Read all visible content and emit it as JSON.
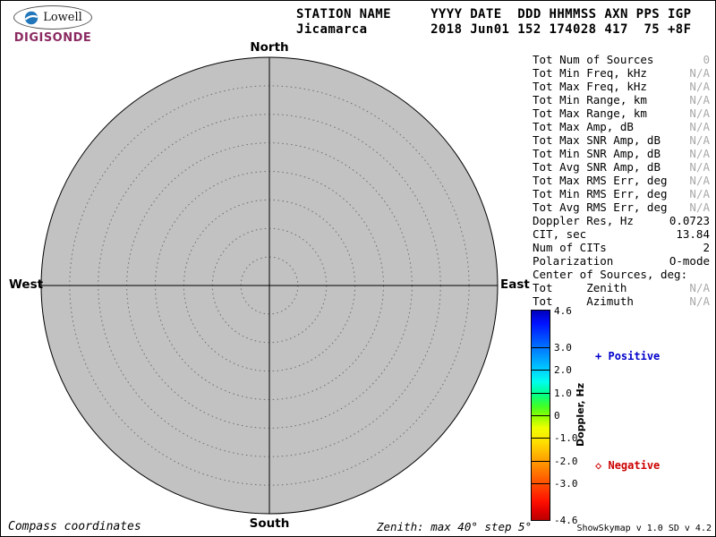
{
  "logo": {
    "name": "Lowell",
    "product": "DIGISONDE"
  },
  "header": {
    "line1": "STATION NAME     YYYY DATE  DDD HHMMSS AXN PPS IGP",
    "line2": "Jicamarca        2018 Jun01 152 174028 417  75 +8F"
  },
  "compass": {
    "north": "North",
    "south": "South",
    "east": "East",
    "west": "West"
  },
  "stats": {
    "rows": [
      {
        "label": "Tot Num of Sources",
        "value": "0",
        "muted": true
      },
      {
        "label": "Tot Min Freq, kHz",
        "value": "N/A",
        "muted": true
      },
      {
        "label": "Tot Max Freq, kHz",
        "value": "N/A",
        "muted": true
      },
      {
        "label": "Tot Min Range, km",
        "value": "N/A",
        "muted": true
      },
      {
        "label": "Tot Max Range, km",
        "value": "N/A",
        "muted": true
      },
      {
        "label": "Tot Max Amp, dB",
        "value": "N/A",
        "muted": true
      },
      {
        "label": "Tot Max SNR Amp, dB",
        "value": "N/A",
        "muted": true
      },
      {
        "label": "Tot Min SNR Amp, dB",
        "value": "N/A",
        "muted": true
      },
      {
        "label": "Tot Avg SNR Amp, dB",
        "value": "N/A",
        "muted": true
      },
      {
        "label": "Tot Max RMS Err, deg",
        "value": "N/A",
        "muted": true
      },
      {
        "label": "Tot Min RMS Err, deg",
        "value": "N/A",
        "muted": true
      },
      {
        "label": "Tot Avg RMS Err, deg",
        "value": "N/A",
        "muted": true
      },
      {
        "label": "Doppler Res, Hz",
        "value": "0.0723",
        "muted": false
      },
      {
        "label": "CIT, sec",
        "value": "13.84",
        "muted": false
      },
      {
        "label": "Num of CITs",
        "value": "2",
        "muted": false
      },
      {
        "label": "Polarization",
        "value": "O-mode",
        "muted": false
      },
      {
        "label": "Center of Sources, deg:",
        "value": "",
        "muted": false
      },
      {
        "label": "Tot     Zenith",
        "value": "N/A",
        "muted": true
      },
      {
        "label": "Tot     Azimuth",
        "value": "N/A",
        "muted": true
      }
    ]
  },
  "colorbar": {
    "title": "Doppler, Hz",
    "max": 4.6,
    "min": -4.6,
    "ticks": [
      "4.6",
      "3.0",
      "2.0",
      "1.0",
      "0",
      "-1.0",
      "-2.0",
      "-3.0",
      "-4.6"
    ]
  },
  "legend": {
    "positive_symbol": "+",
    "positive_label": "Positive",
    "positive_color": "#0000cc",
    "negative_symbol": "◇",
    "negative_label": "Negative",
    "negative_color": "#cc0000"
  },
  "footer": {
    "left": "Compass coordinates",
    "center": "Zenith: max 40°  step 5°",
    "right": "ShowSkymap v 1.0  SD v 4.2"
  },
  "chart_data": {
    "type": "scatter",
    "title": "Digisonde skymap, compass coordinates",
    "station": "Jicamarca",
    "datetime": "2018 Jun01 152 174028",
    "points": [],
    "num_sources": 0,
    "zenith_max_deg": 40,
    "zenith_step_deg": 5,
    "polar_grid": true,
    "disk_color": "#c2c2c2",
    "colorbar": {
      "label": "Doppler, Hz",
      "min": -4.6,
      "max": 4.6,
      "tick_values": [
        4.6,
        3.0,
        2.0,
        1.0,
        0,
        -1.0,
        -2.0,
        -3.0,
        -4.6
      ]
    }
  }
}
